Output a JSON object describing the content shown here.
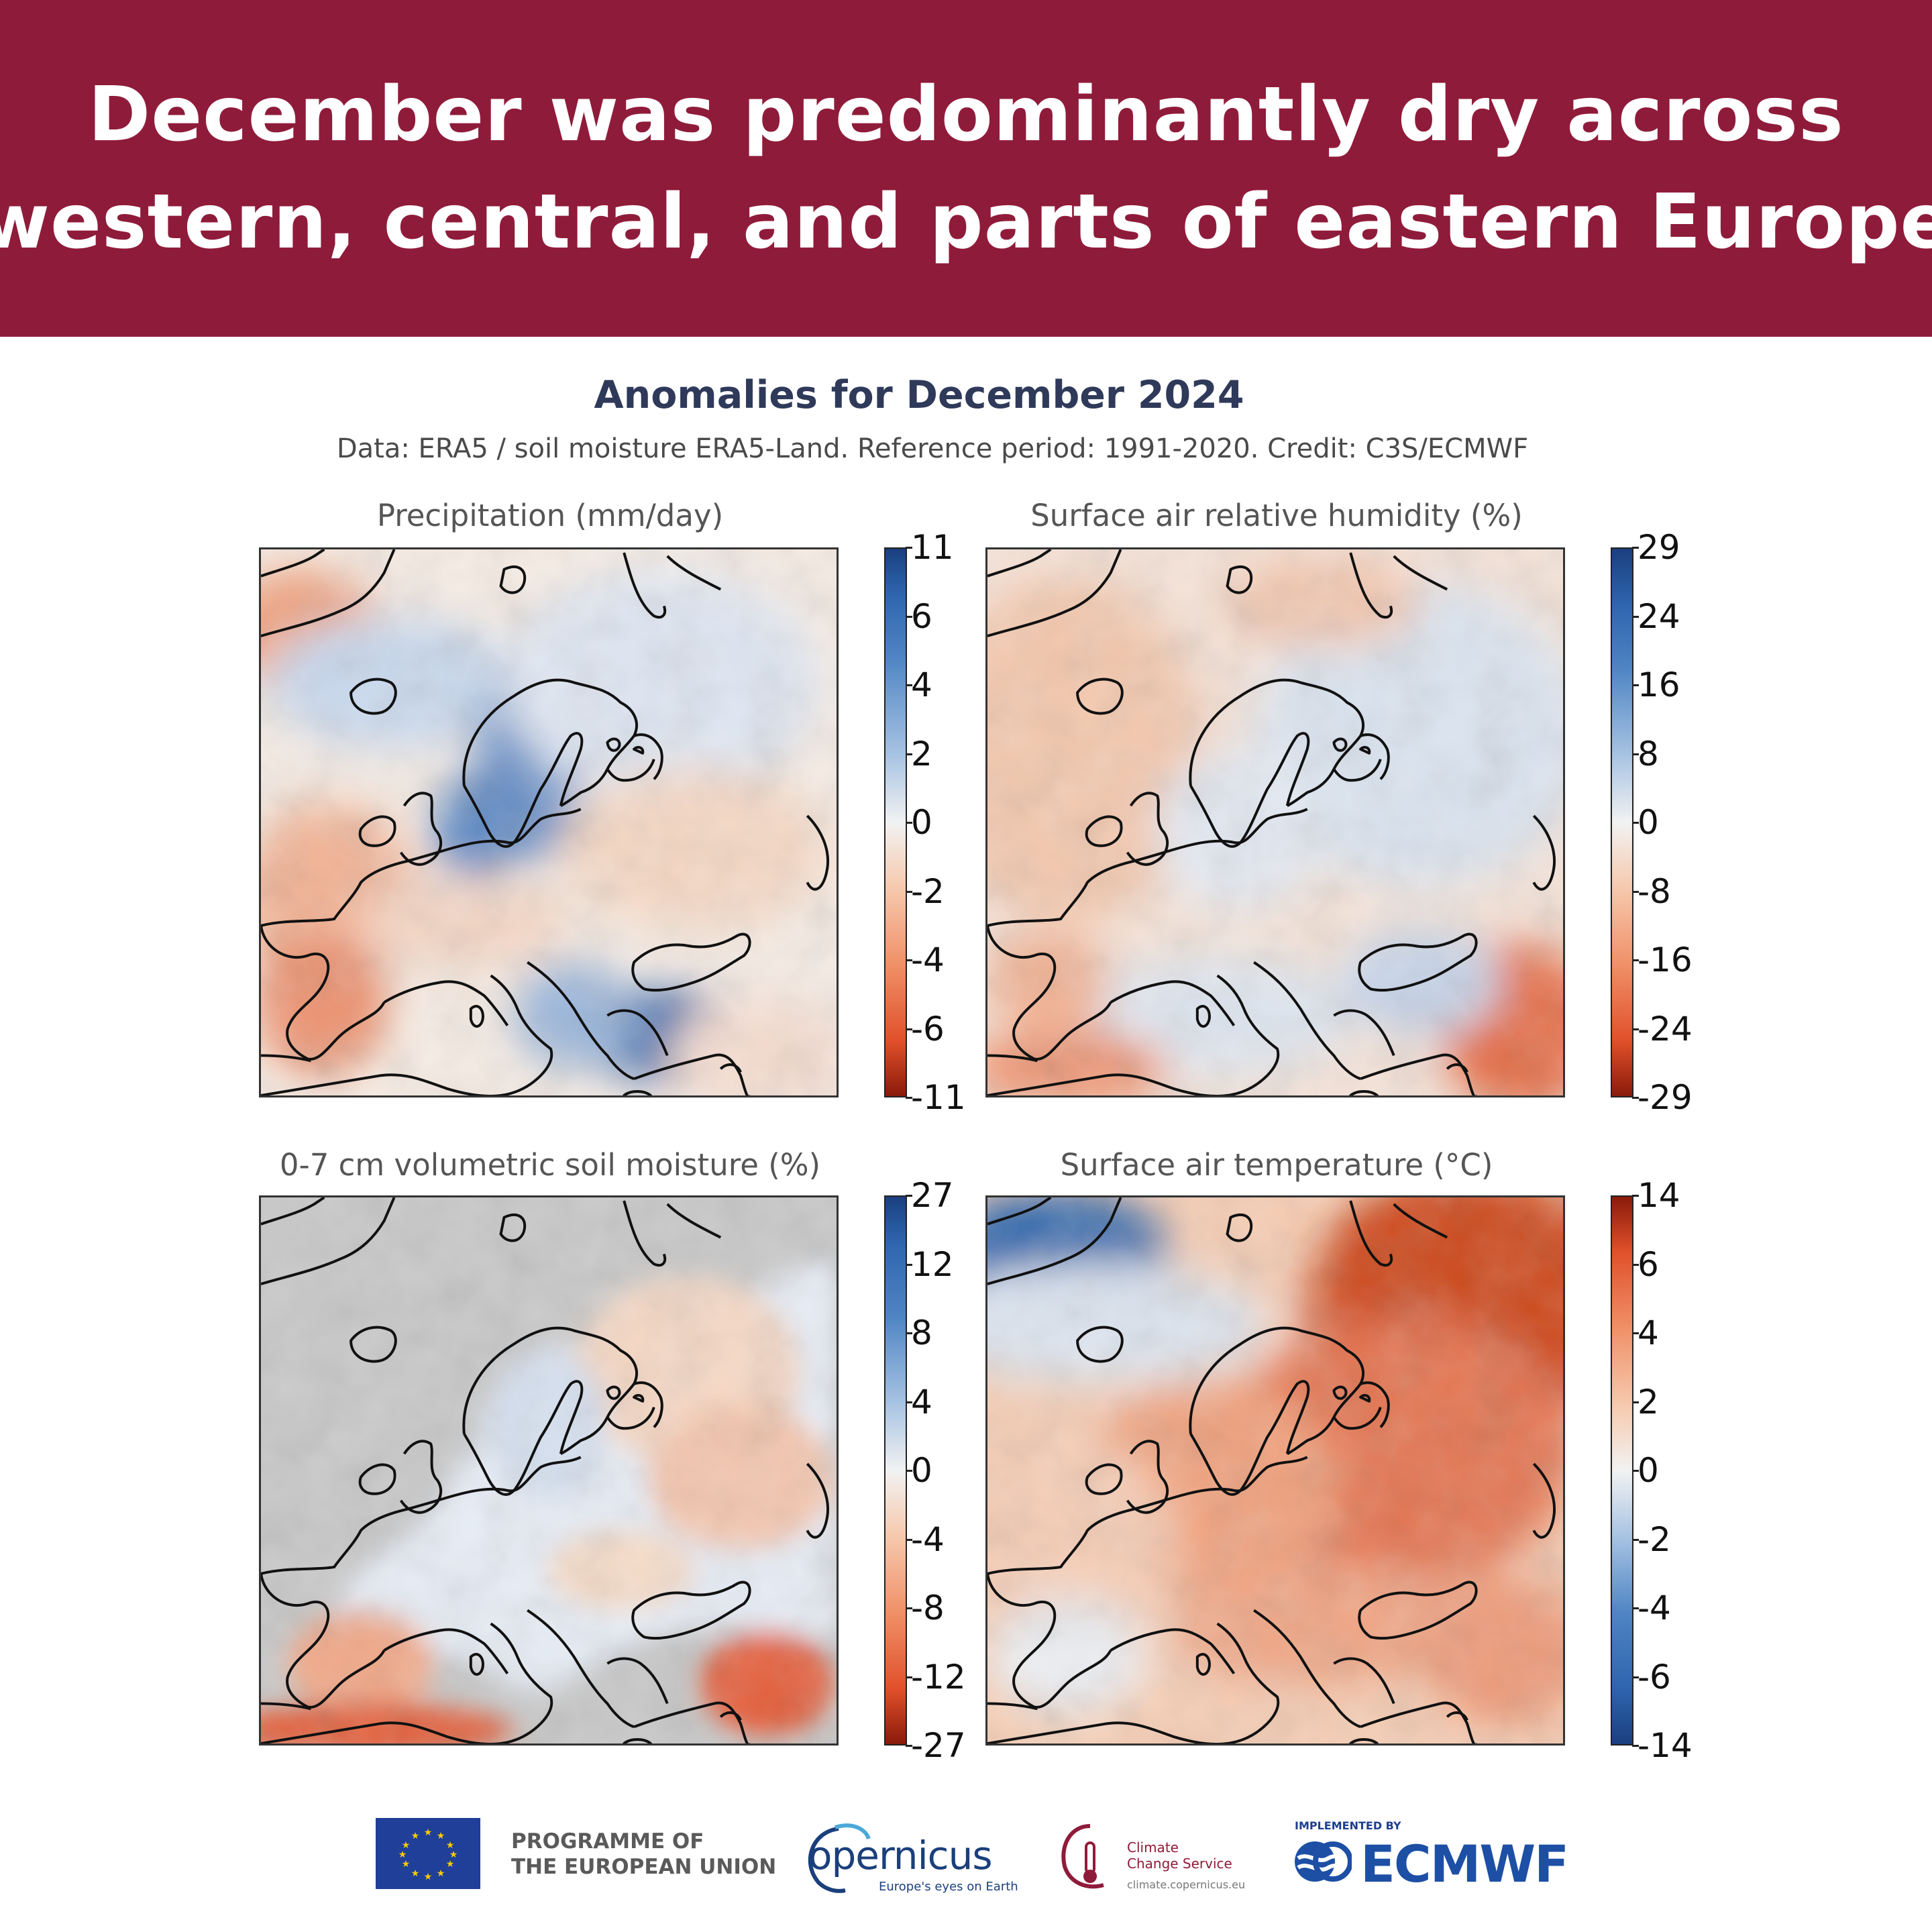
{
  "headline": {
    "line1": "December was predominantly dry across",
    "line2": "western, central, and parts of eastern Europe",
    "bg_color": "#8f1b3a"
  },
  "figure": {
    "title": "Anomalies for December 2024",
    "subtitle": "Data: ERA5 / soil moisture ERA5-Land.  Reference period: 1991-2020.  Credit: C3S/ECMWF"
  },
  "panels": [
    {
      "title": "Precipitation (mm/day)",
      "colorbar_ticks": [
        "11",
        "6",
        "4",
        "2",
        "0",
        "-2",
        "-4",
        "-6",
        "-11"
      ],
      "colormap": "red-white-blue (negative=red)",
      "dominant": "mixed; red over Iberia/west, blue over Norway, Balkans"
    },
    {
      "title": "Surface air relative humidity (%)",
      "colorbar_ticks": [
        "29",
        "24",
        "16",
        "8",
        "0",
        "-8",
        "-16",
        "-24",
        "-29"
      ],
      "colormap": "red-white-blue (negative=red)",
      "dominant": "red west/south-east, light blue north-east"
    },
    {
      "title": "0-7 cm volumetric soil moisture (%)",
      "colorbar_ticks": [
        "27",
        "12",
        "8",
        "4",
        "0",
        "-4",
        "-8",
        "-12",
        "-27"
      ],
      "colormap": "red-white-blue (negative=red)",
      "dominant": "grey ocean; light blue/orange over land, red over Iberia and North Africa"
    },
    {
      "title": "Surface air temperature (°C)",
      "colorbar_ticks": [
        "14",
        "6",
        "4",
        "2",
        "0",
        "-2",
        "-4",
        "-6",
        "-14"
      ],
      "colormap": "blue-white-red (positive=red)",
      "dominant": "warm across Europe, strongly warm north-east, cool north-west Atlantic"
    }
  ],
  "footer": {
    "programme": "PROGRAMME OF",
    "programme2": "THE EUROPEAN UNION",
    "copernicus": "opernicus",
    "copernicus_tag": "Europe's eyes on Earth",
    "c3s_line1": "Climate",
    "c3s_line2": "Change Service",
    "c3s_url": "climate.copernicus.eu",
    "implemented_by": "IMPLEMENTED BY",
    "ecmwf": "ECMWF"
  }
}
